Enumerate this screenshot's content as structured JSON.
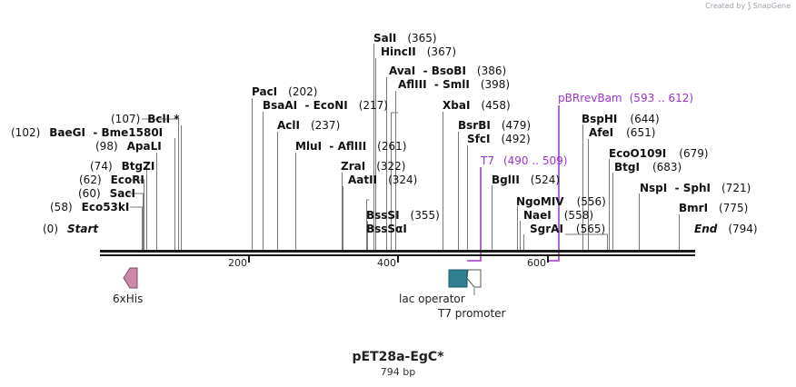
{
  "created_by": "Created by",
  "brand": "SnapGene",
  "plasmid": {
    "name": "pET28a-EgC*",
    "length": "794 bp"
  },
  "ruler": [
    "200",
    "400",
    "600"
  ],
  "colors": {
    "primer": "#9933cc",
    "his": "#cc88a8",
    "lac": "#2f7f92",
    "text": "#111111",
    "line": "#7a7a7a"
  },
  "enzyme_labels": [
    {
      "name": "SalI",
      "pos": "(365)"
    },
    {
      "name": "HincII",
      "pos": "(367)"
    },
    {
      "name": "AvaI  - BsoBI",
      "pos": "(386)"
    },
    {
      "name": "AflIII  - SmlI",
      "pos": "(398)"
    },
    {
      "name": "PacI",
      "pos": "(202)"
    },
    {
      "name": "BsaAI  - EcoNI",
      "pos": "(217)"
    },
    {
      "name": "XbaI",
      "pos": "(458)"
    },
    {
      "name": "BclI *",
      "pos": "(107)"
    },
    {
      "name": "AclI",
      "pos": "(237)"
    },
    {
      "name": "BsrBI",
      "pos": "(479)"
    },
    {
      "name": "BaeGI  - Bme1580I",
      "pos": "(102)"
    },
    {
      "name": "SfcI",
      "pos": "(492)"
    },
    {
      "name": "ApaLI",
      "pos": "(98)"
    },
    {
      "name": "MluI  - AflIII",
      "pos": "(261)"
    },
    {
      "name": "BtgZI",
      "pos": "(74)"
    },
    {
      "name": "ZraI",
      "pos": "(322)"
    },
    {
      "name": "EcoRI",
      "pos": "(62)"
    },
    {
      "name": "AatII",
      "pos": "(324)"
    },
    {
      "name": "SacI",
      "pos": "(60)"
    },
    {
      "name": "BglII",
      "pos": "(524)"
    },
    {
      "name": "Eco53kI",
      "pos": "(58)"
    },
    {
      "name": "BssSI",
      "pos": "(355)"
    },
    {
      "name": "BssSαI",
      "pos": ""
    },
    {
      "name": "Start",
      "pos": "(0)"
    },
    {
      "name": "BspHI",
      "pos": "(644)"
    },
    {
      "name": "AfeI",
      "pos": "(651)"
    },
    {
      "name": "EcoO109I",
      "pos": "(679)"
    },
    {
      "name": "BtgI",
      "pos": "(683)"
    },
    {
      "name": "NspI  - SphI",
      "pos": "(721)"
    },
    {
      "name": "NgoMIV",
      "pos": "(556)"
    },
    {
      "name": "NaeI",
      "pos": "(558)"
    },
    {
      "name": "BmrI",
      "pos": "(775)"
    },
    {
      "name": "SgrAI",
      "pos": "(565)"
    },
    {
      "name": "End",
      "pos": "(794)"
    }
  ],
  "primers": [
    {
      "name": "pBRrevBam",
      "range": "(593 .. 612)"
    },
    {
      "name": "T7",
      "range": "(490 .. 509)"
    }
  ],
  "features": [
    {
      "name": "6xHis"
    },
    {
      "name": "lac operator"
    },
    {
      "name": "T7 promoter"
    }
  ]
}
